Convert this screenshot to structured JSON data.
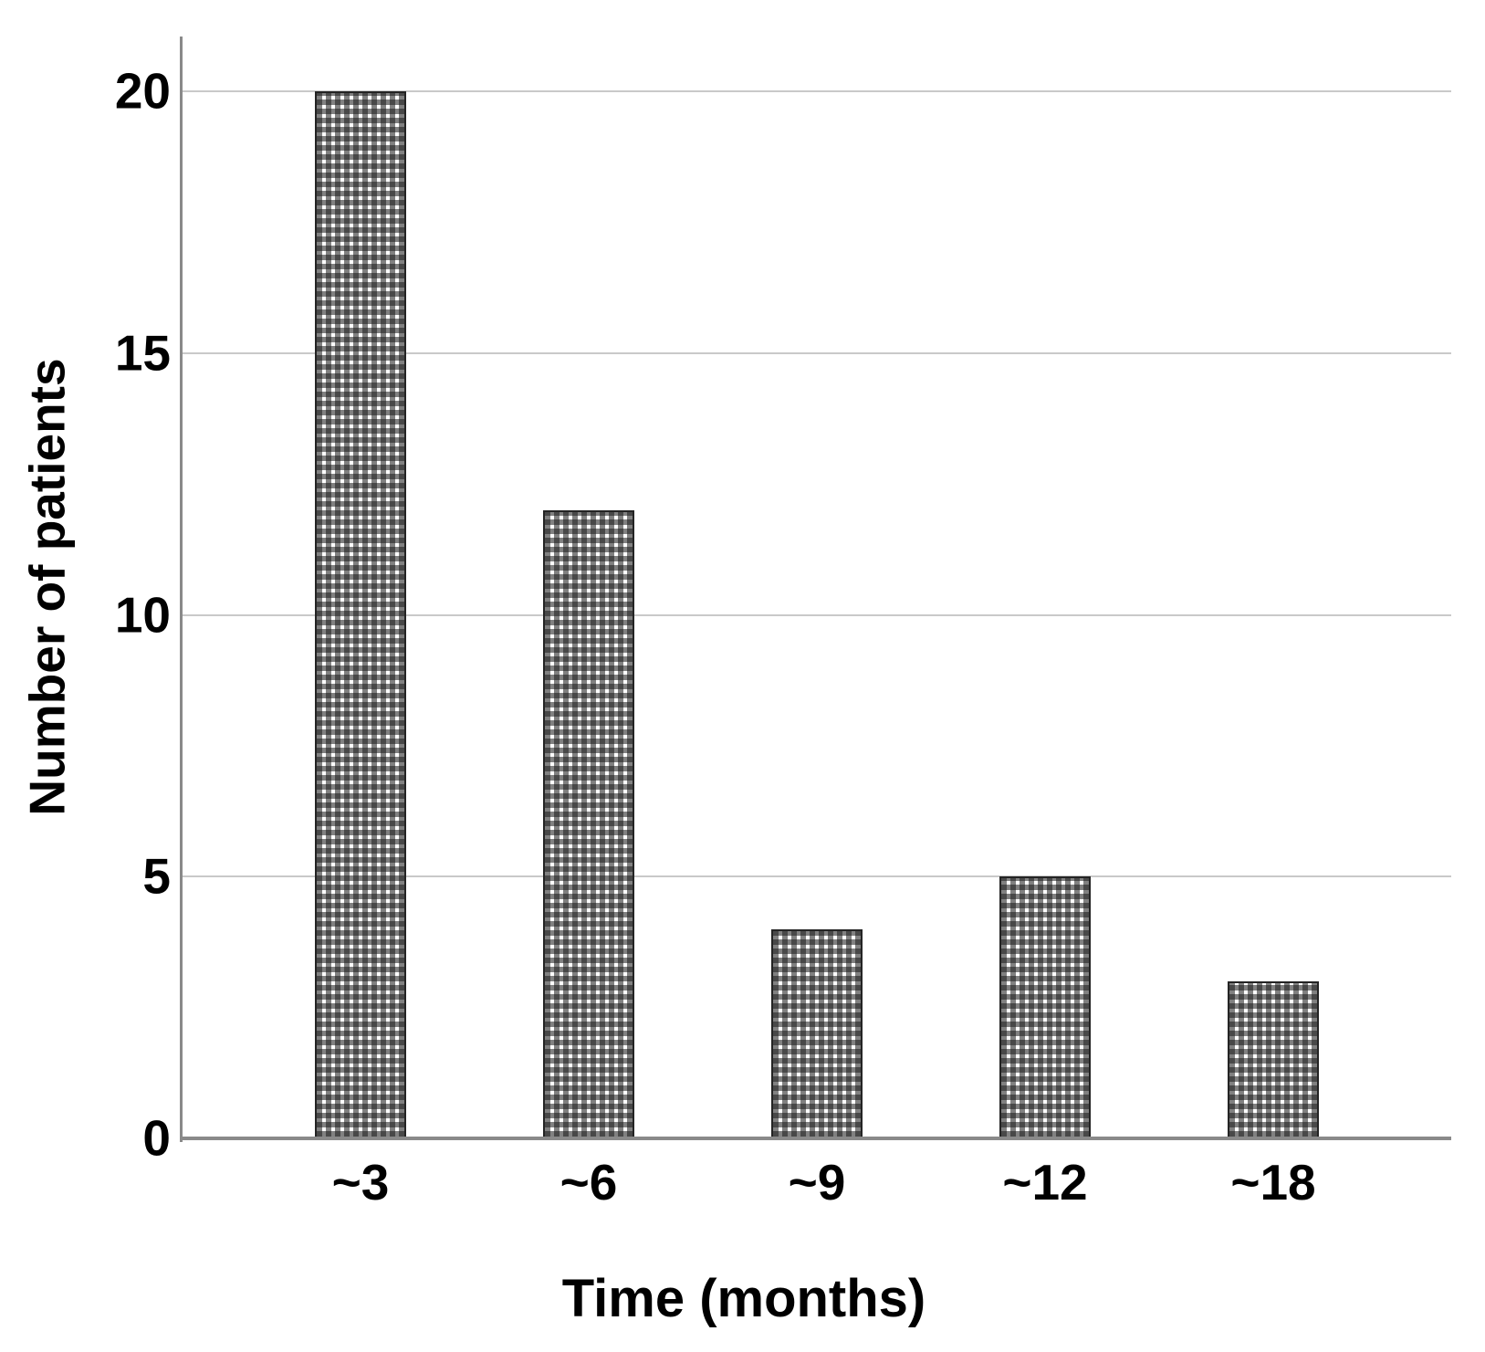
{
  "chart_data": {
    "type": "bar",
    "categories": [
      "~3",
      "~6",
      "~9",
      "~12",
      "~18"
    ],
    "values": [
      20,
      12,
      4,
      5,
      3
    ],
    "xlabel": "Time (months)",
    "ylabel": "Number of patients",
    "ylim": [
      0,
      20
    ],
    "yticks": [
      0,
      5,
      10,
      15,
      20
    ],
    "grid": "horizontal-gridlines-on",
    "legend": "none",
    "bar_style": {
      "fill": "#ffffff",
      "pattern": "crosshatch-grid",
      "pattern_color": "#404040",
      "border_color": "#242424"
    },
    "axis_color": "#8a8a8a",
    "gridline_color": "#c9c9c9",
    "text_color": "#000000"
  }
}
